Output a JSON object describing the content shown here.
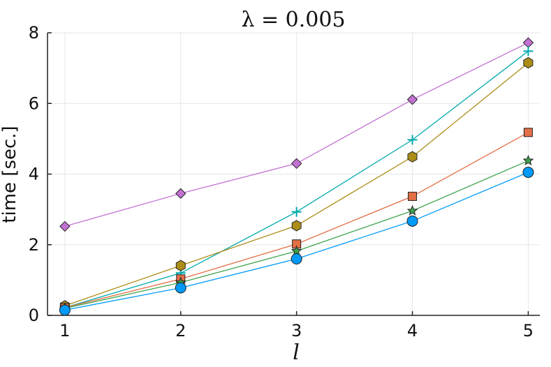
{
  "chart_data": {
    "type": "line",
    "title": "λ = 0.005",
    "xlabel": "l",
    "ylabel": "time [sec.]",
    "x": [
      1,
      2,
      3,
      4,
      5
    ],
    "xticks": [
      "1",
      "2",
      "3",
      "4",
      "5"
    ],
    "yticks": [
      "0",
      "2",
      "4",
      "6",
      "8"
    ],
    "xlim": [
      0.85,
      5.1
    ],
    "ylim": [
      0,
      8
    ],
    "grid": true,
    "legend": "none",
    "series": [
      {
        "color": "#c271d2",
        "marker": "diamond",
        "values": [
          2.52,
          3.45,
          4.3,
          6.11,
          7.72
        ]
      },
      {
        "color": "#00a9ad",
        "marker": "cross",
        "values": [
          0.22,
          1.2,
          2.93,
          4.97,
          7.48
        ]
      },
      {
        "color": "#ac8d18",
        "marker": "hexagon",
        "values": [
          0.27,
          1.41,
          2.54,
          4.49,
          7.15
        ]
      },
      {
        "color": "#e26f46",
        "marker": "square",
        "values": [
          0.22,
          1.03,
          2.02,
          3.37,
          5.18
        ]
      },
      {
        "color": "#3da44d",
        "marker": "star",
        "values": [
          0.2,
          0.93,
          1.82,
          2.96,
          4.38
        ]
      },
      {
        "color": "#009af9",
        "marker": "circle",
        "values": [
          0.15,
          0.78,
          1.6,
          2.67,
          4.05
        ]
      }
    ]
  }
}
